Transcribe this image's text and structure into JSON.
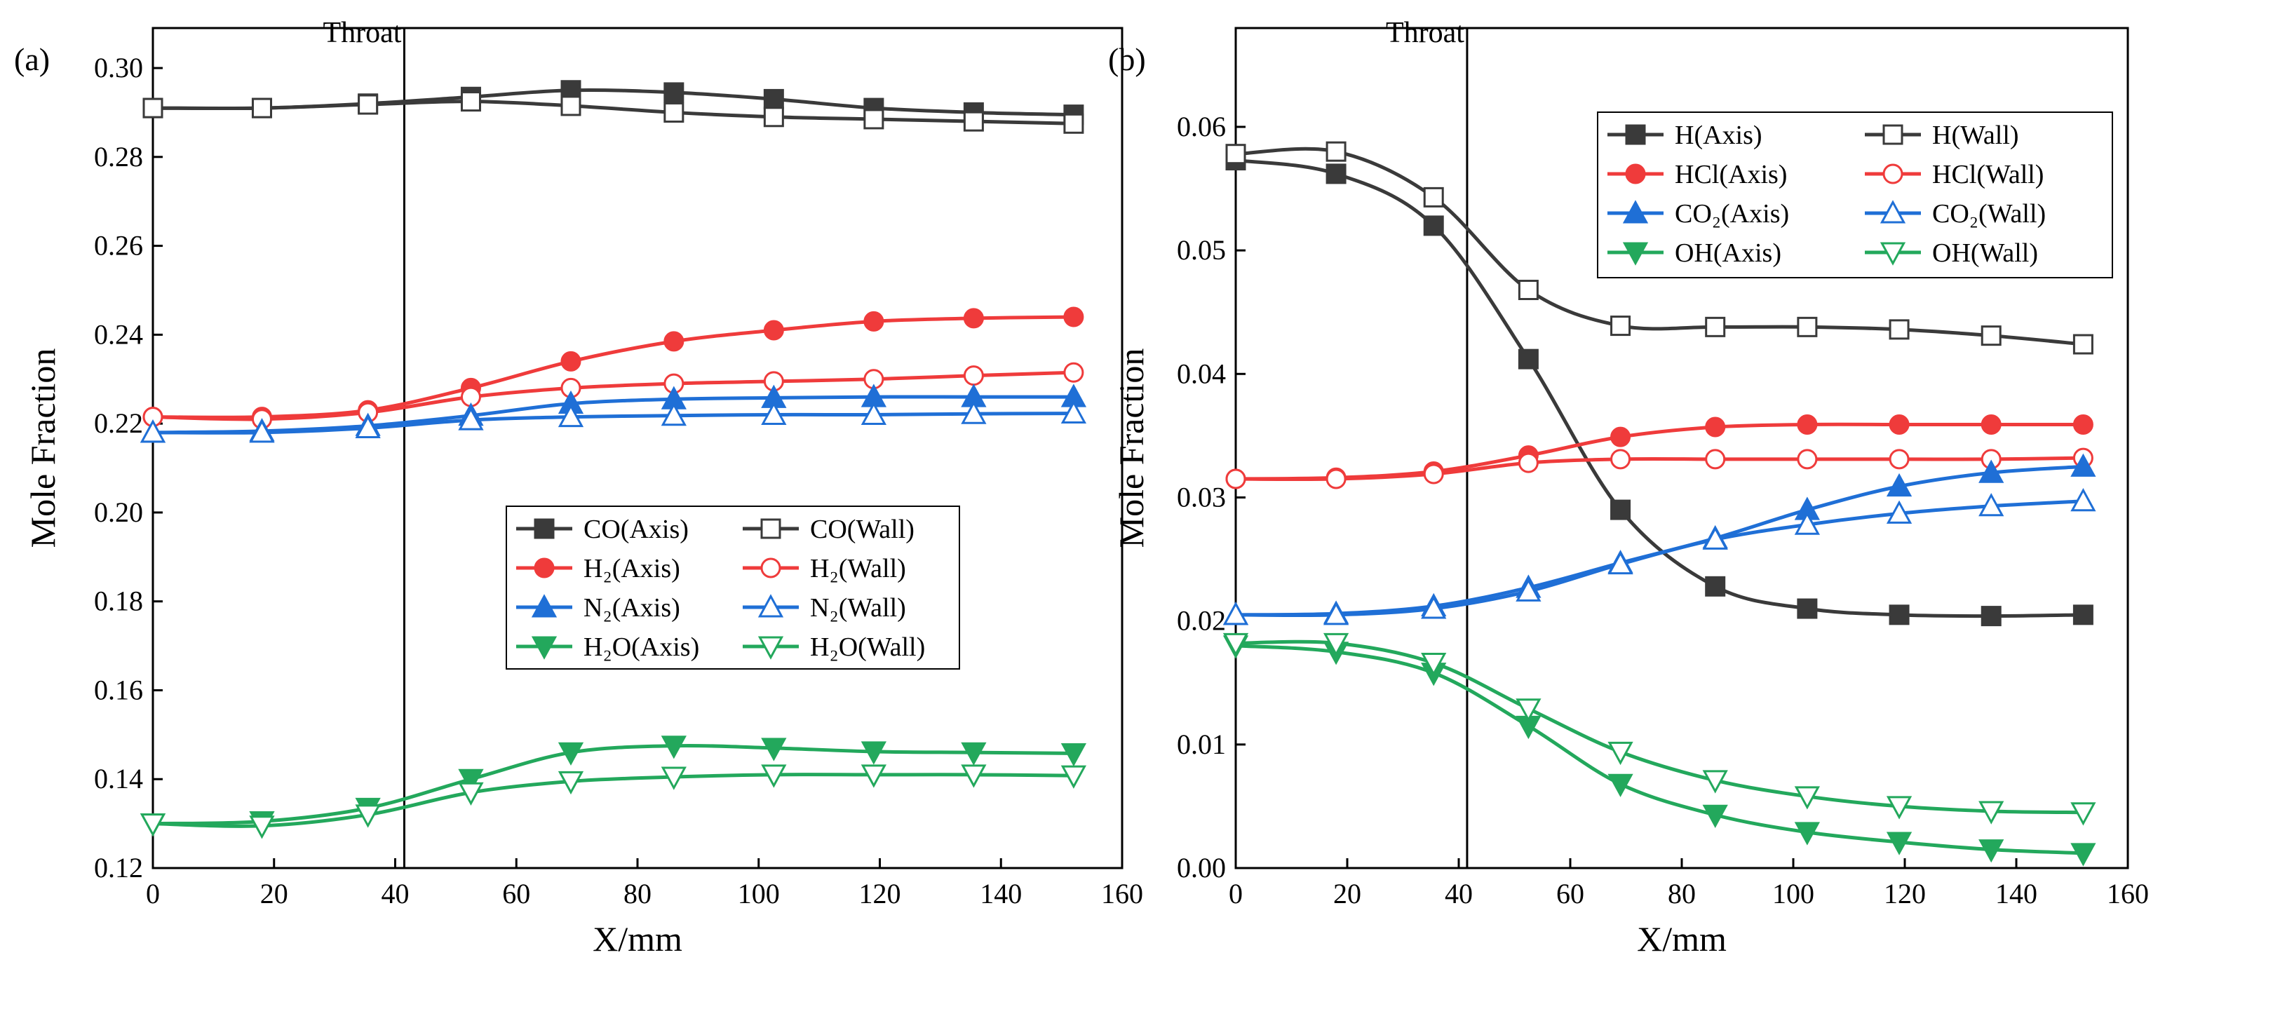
{
  "chart_data": [
    {
      "type": "line",
      "panel_label": "(a)",
      "annotation": "Throat",
      "throat_x": 41.5,
      "xlabel": "X/mm",
      "ylabel": "Mole Fraction",
      "xlim": [
        0,
        160
      ],
      "ylim": [
        0.12,
        0.309
      ],
      "xticks": [
        "0",
        "20",
        "40",
        "60",
        "80",
        "100",
        "120",
        "140",
        "160"
      ],
      "yticks": [
        "0.12",
        "0.14",
        "0.16",
        "0.18",
        "0.20",
        "0.22",
        "0.24",
        "0.26",
        "0.28",
        "0.30"
      ],
      "ytick_values": [
        0.12,
        0.14,
        0.16,
        0.18,
        0.2,
        0.22,
        0.24,
        0.26,
        0.28,
        0.3
      ],
      "legend_placement": "center",
      "x": [
        0,
        18,
        35.5,
        52.5,
        69,
        86,
        102.5,
        119,
        135.5,
        152
      ],
      "series": [
        {
          "name": "CO(Axis)",
          "color": "#3a3a3a",
          "marker": "square",
          "filled": true,
          "values": [
            0.291,
            0.291,
            0.292,
            0.2935,
            0.295,
            0.2945,
            0.293,
            0.291,
            0.29,
            0.2895
          ]
        },
        {
          "name": "CO(Wall)",
          "color": "#3a3a3a",
          "marker": "square",
          "filled": false,
          "values": [
            0.291,
            0.291,
            0.2918,
            0.2925,
            0.2915,
            0.29,
            0.289,
            0.2885,
            0.288,
            0.2875
          ]
        },
        {
          "name": "H₂(Axis)",
          "color": "#ef3b3b",
          "marker": "circle",
          "filled": true,
          "values": [
            0.2215,
            0.2215,
            0.223,
            0.228,
            0.234,
            0.2385,
            0.241,
            0.243,
            0.2437,
            0.244
          ]
        },
        {
          "name": "H₂(Wall)",
          "color": "#ef3b3b",
          "marker": "circle",
          "filled": false,
          "values": [
            0.2215,
            0.221,
            0.2225,
            0.226,
            0.228,
            0.229,
            0.2295,
            0.23,
            0.2308,
            0.2315
          ]
        },
        {
          "name": "N₂(Axis)",
          "color": "#1f6fd6",
          "marker": "triangle-up",
          "filled": true,
          "values": [
            0.218,
            0.2183,
            0.2195,
            0.2218,
            0.2245,
            0.2255,
            0.2258,
            0.226,
            0.226,
            0.226
          ]
        },
        {
          "name": "N₂(Wall)",
          "color": "#1f6fd6",
          "marker": "triangle-up",
          "filled": false,
          "values": [
            0.218,
            0.218,
            0.219,
            0.2208,
            0.2215,
            0.2218,
            0.222,
            0.222,
            0.2222,
            0.2223
          ]
        },
        {
          "name": "H₂O(Axis)",
          "color": "#23a85c",
          "marker": "triangle-down",
          "filled": true,
          "values": [
            0.13,
            0.1305,
            0.1335,
            0.14,
            0.146,
            0.1475,
            0.147,
            0.1462,
            0.146,
            0.1458
          ]
        },
        {
          "name": "H₂O(Wall)",
          "color": "#23a85c",
          "marker": "triangle-down",
          "filled": false,
          "values": [
            0.13,
            0.1295,
            0.132,
            0.137,
            0.1395,
            0.1405,
            0.141,
            0.141,
            0.141,
            0.1408
          ]
        }
      ]
    },
    {
      "type": "line",
      "panel_label": "(b)",
      "annotation": "Throat",
      "throat_x": 41.5,
      "xlabel": "X/mm",
      "ylabel": "Mole Fraction",
      "xlim": [
        0,
        160
      ],
      "ylim": [
        0,
        0.068
      ],
      "xticks": [
        "0",
        "20",
        "40",
        "60",
        "80",
        "100",
        "120",
        "140",
        "160"
      ],
      "yticks": [
        "0.00",
        "0.01",
        "0.02",
        "0.03",
        "0.04",
        "0.05",
        "0.06"
      ],
      "ytick_values": [
        0,
        0.01,
        0.02,
        0.03,
        0.04,
        0.05,
        0.06
      ],
      "legend_placement": "top-right",
      "x": [
        0,
        18,
        35.5,
        52.5,
        69,
        86,
        102.5,
        119,
        135.5,
        152
      ],
      "series": [
        {
          "name": "H(Axis)",
          "color": "#3a3a3a",
          "marker": "square",
          "filled": true,
          "values": [
            0.0573,
            0.0562,
            0.052,
            0.0412,
            0.029,
            0.0228,
            0.021,
            0.0205,
            0.0204,
            0.0205
          ]
        },
        {
          "name": "H(Wall)",
          "color": "#3a3a3a",
          "marker": "square",
          "filled": false,
          "values": [
            0.0578,
            0.058,
            0.0543,
            0.0468,
            0.0439,
            0.0438,
            0.0438,
            0.0436,
            0.0431,
            0.0424
          ]
        },
        {
          "name": "HCl(Axis)",
          "color": "#ef3b3b",
          "marker": "circle",
          "filled": true,
          "values": [
            0.0315,
            0.0316,
            0.0321,
            0.0334,
            0.0349,
            0.0357,
            0.0359,
            0.0359,
            0.0359,
            0.0359
          ]
        },
        {
          "name": "HCl(Wall)",
          "color": "#ef3b3b",
          "marker": "circle",
          "filled": false,
          "values": [
            0.0315,
            0.0315,
            0.0319,
            0.0328,
            0.0331,
            0.0331,
            0.0331,
            0.0331,
            0.0331,
            0.0332
          ]
        },
        {
          "name": "CO₂(Axis)",
          "color": "#1f6fd6",
          "marker": "triangle-up",
          "filled": true,
          "values": [
            0.0205,
            0.0206,
            0.0212,
            0.0227,
            0.0247,
            0.0267,
            0.029,
            0.0309,
            0.032,
            0.0325
          ]
        },
        {
          "name": "CO₂(Wall)",
          "color": "#1f6fd6",
          "marker": "triangle-up",
          "filled": false,
          "values": [
            0.0205,
            0.0205,
            0.021,
            0.0224,
            0.0246,
            0.0266,
            0.0278,
            0.0287,
            0.0293,
            0.0297
          ]
        },
        {
          "name": "OH(Axis)",
          "color": "#23a85c",
          "marker": "triangle-down",
          "filled": true,
          "values": [
            0.018,
            0.0175,
            0.0158,
            0.0115,
            0.0068,
            0.0043,
            0.0029,
            0.0021,
            0.0015,
            0.0012
          ]
        },
        {
          "name": "OH(Wall)",
          "color": "#23a85c",
          "marker": "triangle-down",
          "filled": false,
          "values": [
            0.0182,
            0.0182,
            0.0166,
            0.0129,
            0.0094,
            0.0071,
            0.0058,
            0.005,
            0.0046,
            0.0045
          ]
        }
      ]
    }
  ]
}
